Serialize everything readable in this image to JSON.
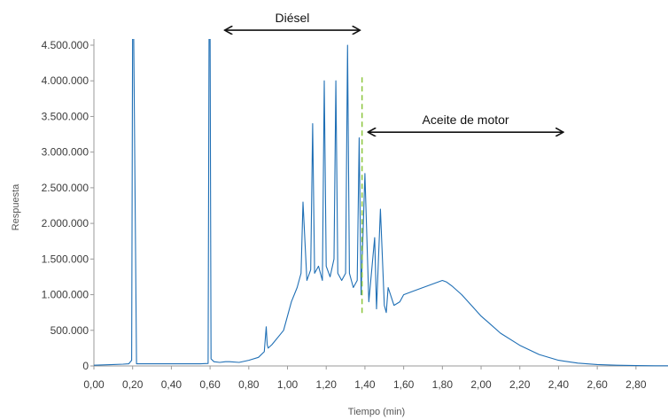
{
  "chart_data": {
    "type": "line",
    "title": "",
    "xlabel": "Tiempo (min)",
    "ylabel": "Respuesta",
    "xlim": [
      0.0,
      2.97
    ],
    "ylim": [
      0,
      4500000
    ],
    "x_ticks": [
      "0,00",
      "0,20",
      "0,40",
      "0,60",
      "0,80",
      "1,00",
      "1,20",
      "1,40",
      "1,60",
      "1,80",
      "2,00",
      "2,20",
      "2,40",
      "2,60",
      "2,80"
    ],
    "y_ticks": [
      "0",
      "500.000",
      "1.000.000",
      "1.500.000",
      "2.000.000",
      "2.500.000",
      "3.000.000",
      "3.500.000",
      "4.000.000",
      "4.500.000"
    ],
    "grid": false,
    "series": [
      {
        "color": "#1f6fb5",
        "x": [
          0.0,
          0.05,
          0.1,
          0.15,
          0.18,
          0.195,
          0.2,
          0.205,
          0.22,
          0.3,
          0.4,
          0.5,
          0.55,
          0.59,
          0.595,
          0.6,
          0.605,
          0.62,
          0.65,
          0.68,
          0.7,
          0.75,
          0.8,
          0.85,
          0.88,
          0.89,
          0.895,
          0.9,
          0.92,
          0.95,
          0.98,
          1.0,
          1.02,
          1.05,
          1.07,
          1.08,
          1.1,
          1.12,
          1.13,
          1.14,
          1.16,
          1.18,
          1.19,
          1.2,
          1.22,
          1.24,
          1.25,
          1.26,
          1.28,
          1.3,
          1.31,
          1.32,
          1.34,
          1.36,
          1.37,
          1.38,
          1.4,
          1.42,
          1.45,
          1.46,
          1.48,
          1.5,
          1.51,
          1.52,
          1.55,
          1.58,
          1.6,
          1.65,
          1.7,
          1.75,
          1.8,
          1.82,
          1.85,
          1.9,
          1.95,
          2.0,
          2.05,
          2.1,
          2.2,
          2.3,
          2.4,
          2.5,
          2.6,
          2.7,
          2.8,
          2.9,
          2.97
        ],
        "y": [
          10000,
          15000,
          20000,
          25000,
          30000,
          80000,
          4800000,
          4800000,
          30000,
          30000,
          30000,
          30000,
          30000,
          35000,
          4800000,
          4800000,
          100000,
          60000,
          50000,
          60000,
          60000,
          50000,
          80000,
          120000,
          200000,
          550000,
          300000,
          250000,
          300000,
          400000,
          500000,
          700000,
          900000,
          1100000,
          1300000,
          2300000,
          1200000,
          1350000,
          3400000,
          1300000,
          1400000,
          1200000,
          4000000,
          1400000,
          1250000,
          1500000,
          4000000,
          1300000,
          1200000,
          1300000,
          4500000,
          1300000,
          1100000,
          1200000,
          3200000,
          1000000,
          2700000,
          900000,
          1800000,
          800000,
          2200000,
          850000,
          750000,
          1100000,
          850000,
          900000,
          1000000,
          1050000,
          1100000,
          1150000,
          1200000,
          1180000,
          1120000,
          1000000,
          850000,
          700000,
          580000,
          460000,
          290000,
          160000,
          80000,
          40000,
          20000,
          10000,
          5000,
          3000,
          2000
        ]
      }
    ],
    "annotations": [
      {
        "text": "Diésel",
        "x_from": 0.68,
        "x_to": 1.37,
        "y": 4710000,
        "arrow": "both"
      },
      {
        "text": "Aceite de motor",
        "x_from": 1.42,
        "x_to": 2.42,
        "y": 3280000,
        "arrow": "both"
      },
      {
        "type": "dashed-vline",
        "x": 1.385,
        "y_from": 700000,
        "y_to": 4050000,
        "color": "#8dc63f"
      }
    ]
  }
}
